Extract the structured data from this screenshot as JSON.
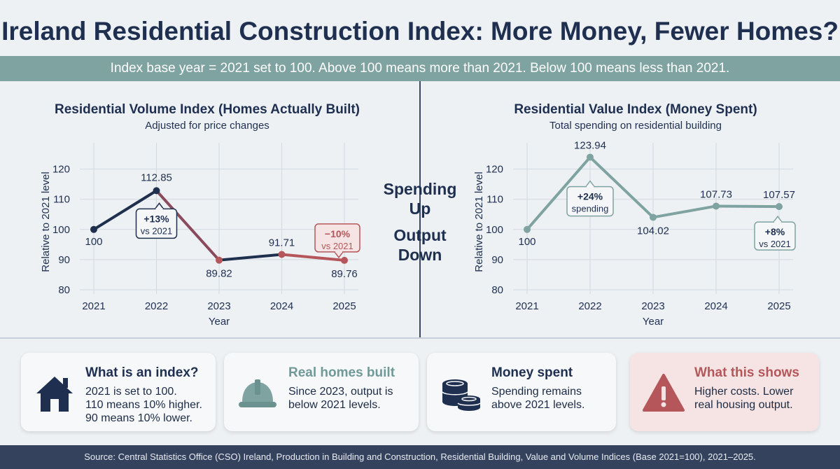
{
  "header": {
    "title": "Ireland Residential Construction Index: More Money, Fewer Homes?",
    "subtitle": "Index base year = 2021 set to 100. Above 100 means more than 2021. Below 100 means less than 2021."
  },
  "center_message": {
    "line1": "Spending",
    "line2": "Up",
    "line3": "Output",
    "line4": "Down"
  },
  "chart_data": [
    {
      "type": "line",
      "title": "Residential Volume Index (Homes Actually Built)",
      "subtitle": "Adjusted for price changes",
      "xlabel": "Year",
      "ylabel": "Relative to 2021 level",
      "x": [
        "2021",
        "2022",
        "2023",
        "2024",
        "2025"
      ],
      "values": [
        100,
        112.85,
        89.82,
        91.71,
        89.76
      ],
      "data_labels": [
        "100",
        "112.85",
        "89.82",
        "91.71",
        "89.76"
      ],
      "ylim": [
        80,
        125
      ],
      "yticks": [
        80,
        90,
        100,
        110,
        120
      ],
      "grid": true,
      "colors": {
        "rise": "#1f2f4e",
        "fall": "#b5575a",
        "mid": "#8a4a5e"
      },
      "callouts": [
        {
          "x": "2022",
          "line1": "+13%",
          "line2": "vs 2021",
          "style": "dark"
        },
        {
          "x": "2025",
          "line1": "−10%",
          "line2": "vs 2021",
          "style": "red"
        }
      ]
    },
    {
      "type": "line",
      "title": "Residential Value Index (Money Spent)",
      "subtitle": "Total spending on residential building",
      "xlabel": "Year",
      "ylabel": "Relative to 2021 level",
      "x": [
        "2021",
        "2022",
        "2023",
        "2024",
        "2025"
      ],
      "values": [
        100,
        123.94,
        104.02,
        107.73,
        107.57
      ],
      "data_labels": [
        "100",
        "123.94",
        "104.02",
        "107.73",
        "107.57"
      ],
      "ylim": [
        80,
        125
      ],
      "yticks": [
        80,
        90,
        100,
        110,
        120
      ],
      "grid": true,
      "colors": {
        "line": "#7ea3a0"
      },
      "callouts": [
        {
          "x": "2022",
          "line1": "+24%",
          "line2": "spending",
          "style": "teal"
        },
        {
          "x": "2025",
          "line1": "+8%",
          "line2": "vs 2021",
          "style": "teal"
        }
      ]
    }
  ],
  "cards": [
    {
      "icon": "house-icon",
      "title": "What is an index?",
      "title_color": "#1e2f4f",
      "body": "2021 is set to 100.\n110 means 10% higher.\n90 means 10% lower."
    },
    {
      "icon": "hard-hat-icon",
      "title": "Real homes built",
      "title_color": "#6f9a97",
      "body": "Since 2023, output is\nbelow 2021 levels."
    },
    {
      "icon": "coins-icon",
      "title": "Money spent",
      "title_color": "#1e2f4f",
      "body": "Spending remains\nabove 2021 levels."
    },
    {
      "icon": "warning-icon",
      "title": "What this shows",
      "title_color": "#b5575a",
      "body": "Higher costs. Lower\nreal housing output."
    }
  ],
  "footer": {
    "source": "Source: Central Statistics Office (CSO) Ireland, Production in Building and Construction, Residential Building, Value and Volume Indices (Base 2021=100), 2021–2025."
  }
}
